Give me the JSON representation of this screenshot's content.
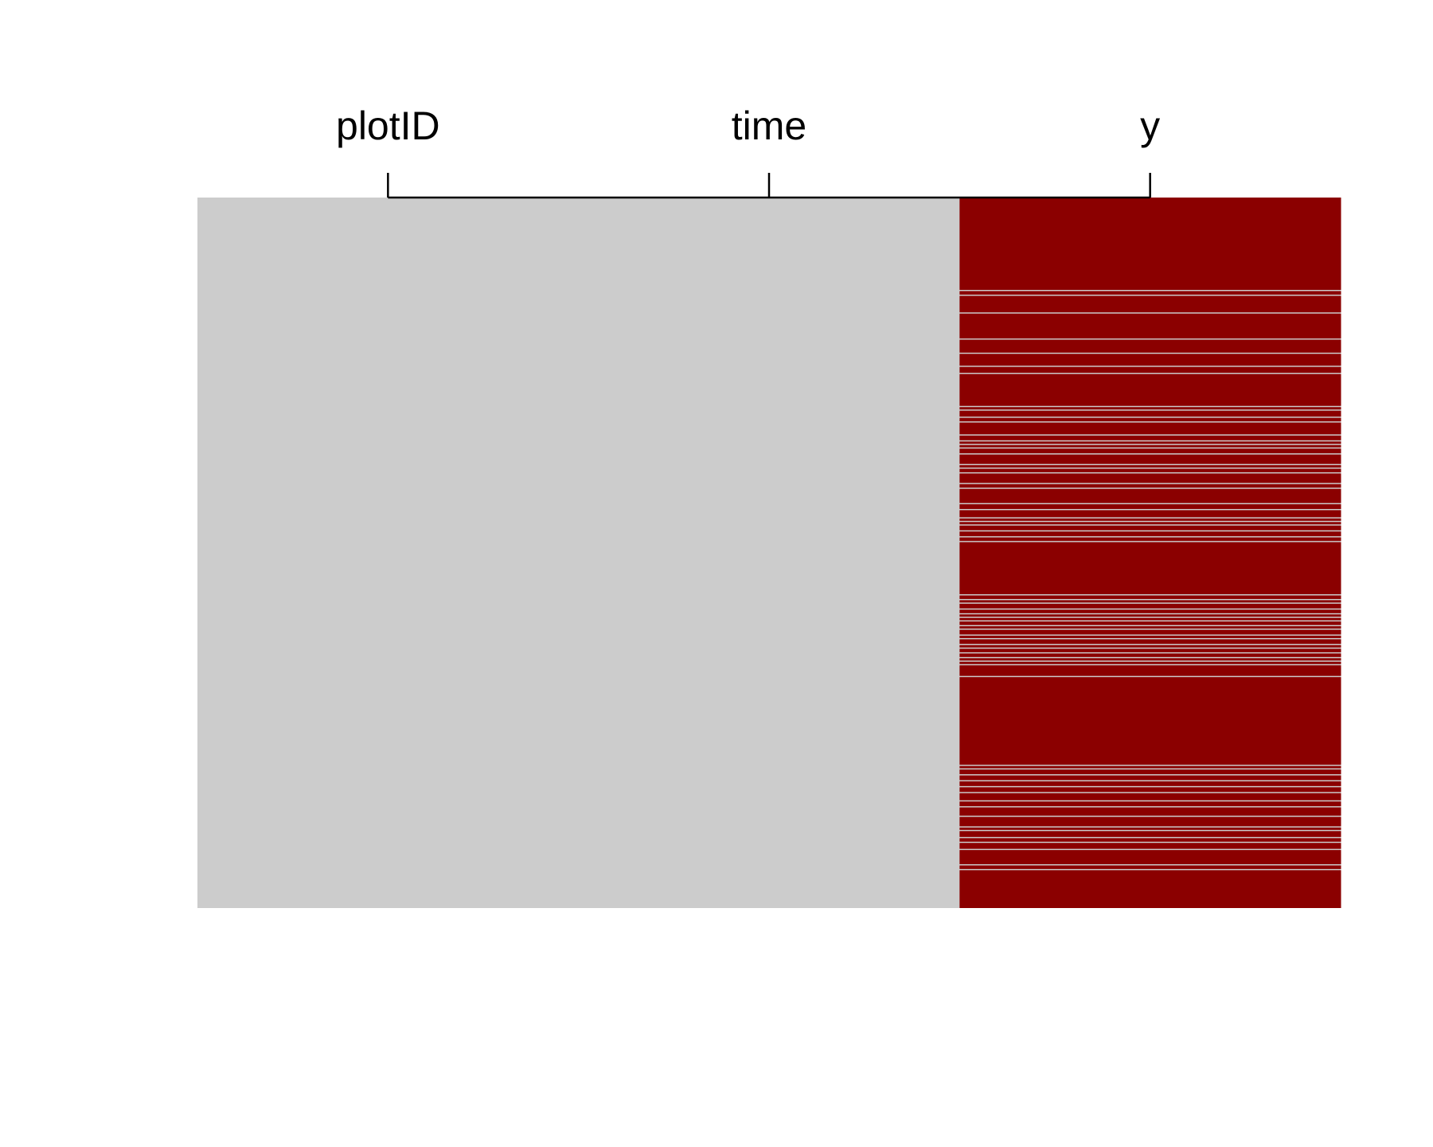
{
  "chart_data": {
    "type": "heatmap",
    "title": "",
    "xlabel": "",
    "ylabel": "",
    "columns": [
      "plotID",
      "time",
      "y"
    ],
    "n_rows": 600,
    "legend": "none",
    "grid": false,
    "colors": {
      "observed": "#cccccc",
      "missing": "#8b0000",
      "background": "#ffffff",
      "axis": "#000000"
    },
    "missing_row_runs": {
      "plotID": [],
      "time": [],
      "y": [
        [
          0,
          77
        ],
        [
          79,
          81
        ],
        [
          83,
          96
        ],
        [
          98,
          118
        ],
        [
          120,
          130
        ],
        [
          132,
          141
        ],
        [
          143,
          147
        ],
        [
          149,
          175
        ],
        [
          177,
          178
        ],
        [
          180,
          184
        ],
        [
          186,
          188
        ],
        [
          190,
          199
        ],
        [
          201,
          204
        ],
        [
          206,
          207
        ],
        [
          209,
          210
        ],
        [
          212,
          215
        ],
        [
          217,
          224
        ],
        [
          226,
          227
        ],
        [
          229,
          231
        ],
        [
          233,
          240
        ],
        [
          242,
          244
        ],
        [
          246,
          257
        ],
        [
          259,
          262
        ],
        [
          264,
          269
        ],
        [
          271,
          272
        ],
        [
          274,
          275
        ],
        [
          277,
          280
        ],
        [
          282,
          285
        ],
        [
          287,
          289
        ],
        [
          291,
          334
        ],
        [
          336,
          338
        ],
        [
          340,
          341
        ],
        [
          343,
          346
        ],
        [
          348,
          350
        ],
        [
          352,
          353
        ],
        [
          355,
          356
        ],
        [
          358,
          360
        ],
        [
          362,
          363
        ],
        [
          365,
          368
        ],
        [
          370,
          371
        ],
        [
          373,
          376
        ],
        [
          378,
          379
        ],
        [
          381,
          383
        ],
        [
          385,
          387
        ],
        [
          389,
          390
        ],
        [
          392,
          393
        ],
        [
          395,
          403
        ],
        [
          405,
          478
        ],
        [
          480,
          481
        ],
        [
          483,
          486
        ],
        [
          488,
          491
        ],
        [
          493,
          496
        ],
        [
          498,
          501
        ],
        [
          503,
          508
        ],
        [
          510,
          513
        ],
        [
          515,
          521
        ],
        [
          523,
          530
        ],
        [
          532,
          533
        ],
        [
          535,
          539
        ],
        [
          541,
          543
        ],
        [
          545,
          549
        ],
        [
          551,
          562
        ],
        [
          564,
          566
        ],
        [
          568,
          599
        ]
      ]
    }
  }
}
